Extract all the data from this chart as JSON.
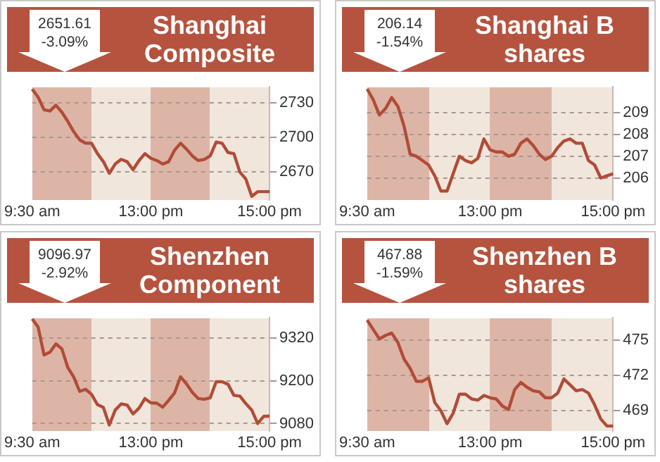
{
  "chart_data": [
    {
      "type": "line",
      "title": "Shanghai Composite",
      "annotations": [
        "2651.61",
        "-3.09%"
      ],
      "color": "#b14c37",
      "ylim": [
        2646,
        2744
      ],
      "yticks": [
        2670,
        2700,
        2730
      ],
      "grid": "y",
      "categories": [
        "9:30 am",
        null,
        null,
        null,
        null,
        null,
        null,
        null,
        null,
        null,
        null,
        null,
        null,
        null,
        null,
        null,
        null,
        null,
        null,
        null,
        "13:00 pm",
        null,
        null,
        null,
        null,
        null,
        null,
        null,
        null,
        null,
        null,
        null,
        null,
        null,
        null,
        null,
        null,
        null,
        null,
        null,
        "15:00 pm"
      ],
      "values": [
        2742,
        2735,
        2724,
        2723,
        2728,
        2722,
        2714,
        2705,
        2698,
        2695,
        2695,
        2686,
        2679,
        2669,
        2677,
        2681,
        2679,
        2672,
        2680,
        2686,
        2682,
        2680,
        2677,
        2679,
        2689,
        2695,
        2690,
        2684,
        2680,
        2681,
        2684,
        2696,
        2695,
        2687,
        2686,
        2670,
        2664,
        2649,
        2653,
        2653,
        2653
      ]
    },
    {
      "type": "line",
      "title": "Shanghai B shares",
      "annotations": [
        "206.14",
        "-1.54%"
      ],
      "color": "#b14c37",
      "ylim": [
        205,
        210.2
      ],
      "yticks": [
        206,
        207,
        208,
        209
      ],
      "grid": "y",
      "categories": [
        "9:30 am",
        null,
        null,
        null,
        null,
        null,
        null,
        null,
        null,
        null,
        null,
        null,
        null,
        null,
        null,
        null,
        null,
        null,
        null,
        null,
        "13:00 pm",
        null,
        null,
        null,
        null,
        null,
        null,
        null,
        null,
        null,
        null,
        null,
        null,
        null,
        null,
        null,
        null,
        null,
        null,
        null,
        "15:00 pm"
      ],
      "values": [
        210.1,
        209.6,
        208.9,
        209.2,
        209.7,
        209.3,
        208.4,
        207.1,
        207.0,
        206.8,
        206.6,
        206.1,
        205.4,
        205.4,
        206.2,
        207.0,
        206.8,
        206.7,
        206.9,
        207.8,
        207.3,
        207.2,
        207.2,
        207.0,
        207.1,
        207.6,
        207.8,
        207.5,
        207.1,
        206.85,
        207.0,
        207.4,
        207.7,
        207.8,
        207.6,
        207.6,
        206.8,
        206.6,
        206.0,
        206.1,
        206.2
      ]
    },
    {
      "type": "line",
      "title": "Shenzhen Component",
      "annotations": [
        "9096.97",
        "-2.92%"
      ],
      "color": "#b14c37",
      "ylim": [
        9060,
        9376
      ],
      "yticks": [
        9080,
        9200,
        9320
      ],
      "grid": "y",
      "categories": [
        "9:30 am",
        null,
        null,
        null,
        null,
        null,
        null,
        null,
        null,
        null,
        null,
        null,
        null,
        null,
        null,
        null,
        null,
        null,
        null,
        null,
        "13:00 pm",
        null,
        null,
        null,
        null,
        null,
        null,
        null,
        null,
        null,
        null,
        null,
        null,
        null,
        null,
        null,
        null,
        null,
        null,
        null,
        "15:00 pm"
      ],
      "values": [
        9373,
        9350,
        9272,
        9280,
        9303,
        9289,
        9237,
        9210,
        9170,
        9176,
        9162,
        9133,
        9125,
        9076,
        9118,
        9135,
        9132,
        9107,
        9123,
        9150,
        9138,
        9137,
        9126,
        9145,
        9166,
        9211,
        9191,
        9167,
        9150,
        9148,
        9152,
        9197,
        9197,
        9190,
        9159,
        9157,
        9136,
        9118,
        9080,
        9100,
        9101
      ]
    },
    {
      "type": "line",
      "title": "Shenzhen B shares",
      "annotations": [
        "467.88",
        "-1.59%"
      ],
      "color": "#b14c37",
      "ylim": [
        467.3,
        476.9
      ],
      "yticks": [
        469,
        472,
        475
      ],
      "grid": "y",
      "categories": [
        "9:30 am",
        null,
        null,
        null,
        null,
        null,
        null,
        null,
        null,
        null,
        null,
        null,
        null,
        null,
        null,
        null,
        null,
        null,
        null,
        null,
        "13:00 pm",
        null,
        null,
        null,
        null,
        null,
        null,
        null,
        null,
        null,
        null,
        null,
        null,
        null,
        null,
        null,
        null,
        null,
        null,
        null,
        "15:00 pm"
      ],
      "values": [
        476.7,
        475.9,
        475.1,
        475.4,
        475.6,
        474.8,
        473.4,
        472.6,
        471.5,
        471.5,
        471.8,
        469.7,
        469.0,
        467.9,
        468.8,
        470.4,
        470.4,
        470.0,
        469.9,
        470.3,
        470.1,
        470.0,
        469.4,
        469.1,
        470.8,
        471.4,
        471.0,
        470.7,
        470.6,
        470.1,
        470.1,
        470.5,
        471.7,
        471.2,
        470.7,
        470.8,
        470.5,
        469.5,
        468.3,
        467.7,
        467.7
      ]
    }
  ]
}
